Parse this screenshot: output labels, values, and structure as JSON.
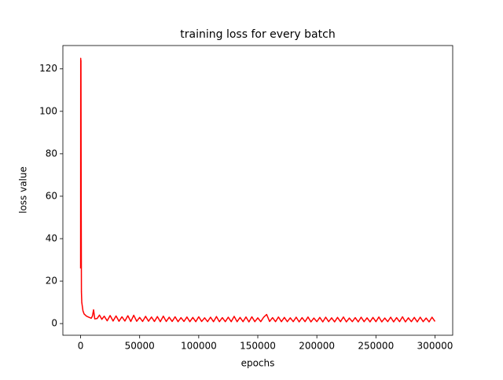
{
  "chart_data": {
    "type": "line",
    "title": "training loss for every batch",
    "xlabel": "epochs",
    "ylabel": "loss value",
    "xlim": [
      -15000,
      315000
    ],
    "ylim": [
      -5.5,
      131
    ],
    "xticks": [
      0,
      50000,
      100000,
      150000,
      200000,
      250000,
      300000
    ],
    "yticks": [
      0,
      20,
      40,
      60,
      80,
      100,
      120
    ],
    "series": [
      {
        "color": "#ff0000",
        "x": [
          0,
          100,
          200,
          300,
          500,
          700,
          1000,
          1500,
          2000,
          3000,
          5000,
          7000,
          9000,
          10000,
          11000,
          12000,
          14000,
          16000,
          18000,
          20000,
          22500,
          25000,
          27500,
          30000,
          32500,
          35000,
          37500,
          40000,
          42500,
          45000,
          47500,
          50000,
          52500,
          55000,
          57500,
          60000,
          62500,
          65000,
          67500,
          70000,
          72500,
          75000,
          77500,
          80000,
          82500,
          85000,
          87500,
          90000,
          92500,
          95000,
          97500,
          100000,
          102500,
          105000,
          107500,
          110000,
          112500,
          115000,
          117500,
          120000,
          122500,
          125000,
          127500,
          130000,
          132500,
          135000,
          137500,
          140000,
          142500,
          145000,
          147500,
          150000,
          152500,
          155000,
          157500,
          160000,
          162500,
          165000,
          167500,
          170000,
          172500,
          175000,
          177500,
          180000,
          182500,
          185000,
          187500,
          190000,
          192500,
          195000,
          197500,
          200000,
          202500,
          205000,
          207500,
          210000,
          212500,
          215000,
          217500,
          220000,
          222500,
          225000,
          227500,
          230000,
          232500,
          235000,
          237500,
          240000,
          242500,
          245000,
          247500,
          250000,
          252500,
          255000,
          257500,
          260000,
          262500,
          265000,
          267500,
          270000,
          272500,
          275000,
          277500,
          280000,
          282500,
          285000,
          287500,
          290000,
          292500,
          295000,
          297500,
          300000
        ],
        "values": [
          26,
          125,
          81,
          124,
          60,
          15,
          10,
          8,
          6,
          4.5,
          3.5,
          3,
          2.5,
          3.5,
          6.5,
          2.2,
          2.4,
          4,
          2,
          3.5,
          1.3,
          3.8,
          1.2,
          3.6,
          1.1,
          3.2,
          1.2,
          3.7,
          1.0,
          3.9,
          1.1,
          2.9,
          1.0,
          3.4,
          1.1,
          3.1,
          1.0,
          3.3,
          0.9,
          3.5,
          1.0,
          3.0,
          1.0,
          3.2,
          0.9,
          2.8,
          1.0,
          3.1,
          0.9,
          2.9,
          0.9,
          3.2,
          1.0,
          2.7,
          0.9,
          3.0,
          0.9,
          3.3,
          0.9,
          2.8,
          0.9,
          3.0,
          0.9,
          3.4,
          0.9,
          2.9,
          0.9,
          3.1,
          0.8,
          3.2,
          0.9,
          2.7,
          0.9,
          3.0,
          4.3,
          1.0,
          2.8,
          0.9,
          3.1,
          0.9,
          2.9,
          0.9,
          2.7,
          0.9,
          3.0,
          0.8,
          2.8,
          0.9,
          3.1,
          0.8,
          2.6,
          0.9,
          2.9,
          0.8,
          3.0,
          0.9,
          2.7,
          0.8,
          2.9,
          0.9,
          3.1,
          0.8,
          2.6,
          0.9,
          2.8,
          0.8,
          3.0,
          0.9,
          2.7,
          0.8,
          2.9,
          0.9,
          3.1,
          0.8,
          2.6,
          0.9,
          3.0,
          0.8,
          2.8,
          0.9,
          3.2,
          0.8,
          2.7,
          0.9,
          2.9,
          0.8,
          3.0,
          0.9,
          2.6,
          0.8,
          3.0,
          1.0
        ]
      }
    ]
  }
}
